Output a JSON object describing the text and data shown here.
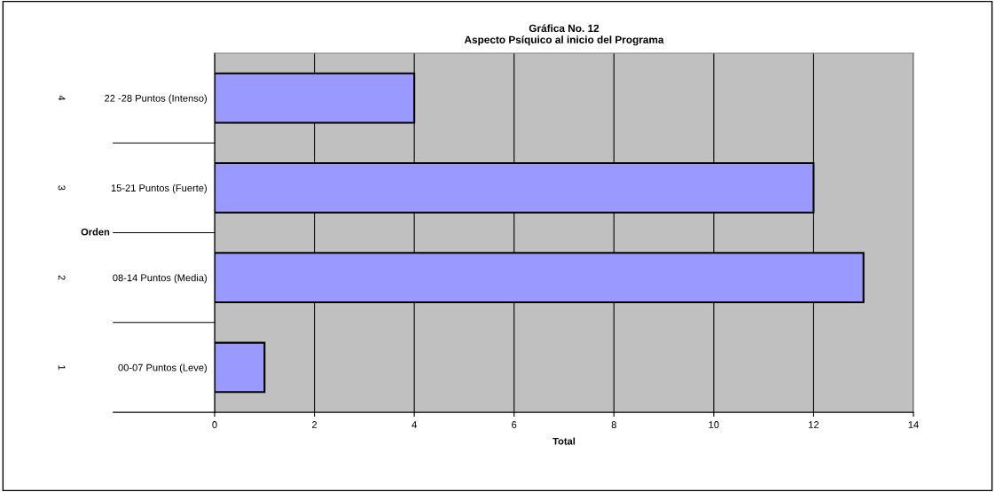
{
  "chart_data": {
    "type": "bar",
    "orientation": "horizontal",
    "title": "Gráfica No. 12\nAspecto Psíquico al inicio del Programa",
    "xlabel": "Total",
    "ylabel": "Orden",
    "categories": [
      "22 -28 Puntos (Intenso)",
      "15-21 Puntos (Fuerte)",
      "08-14 Puntos (Media)",
      "00-07 Puntos (Leve)"
    ],
    "values": [
      4,
      12,
      13,
      1
    ],
    "color": "#9999ff",
    "annotations": [
      "4",
      "3",
      "2",
      "1"
    ],
    "xlim": [
      0,
      14
    ],
    "xticks": [
      0,
      2,
      4,
      6,
      8,
      10,
      12,
      14
    ],
    "grid": "x"
  }
}
